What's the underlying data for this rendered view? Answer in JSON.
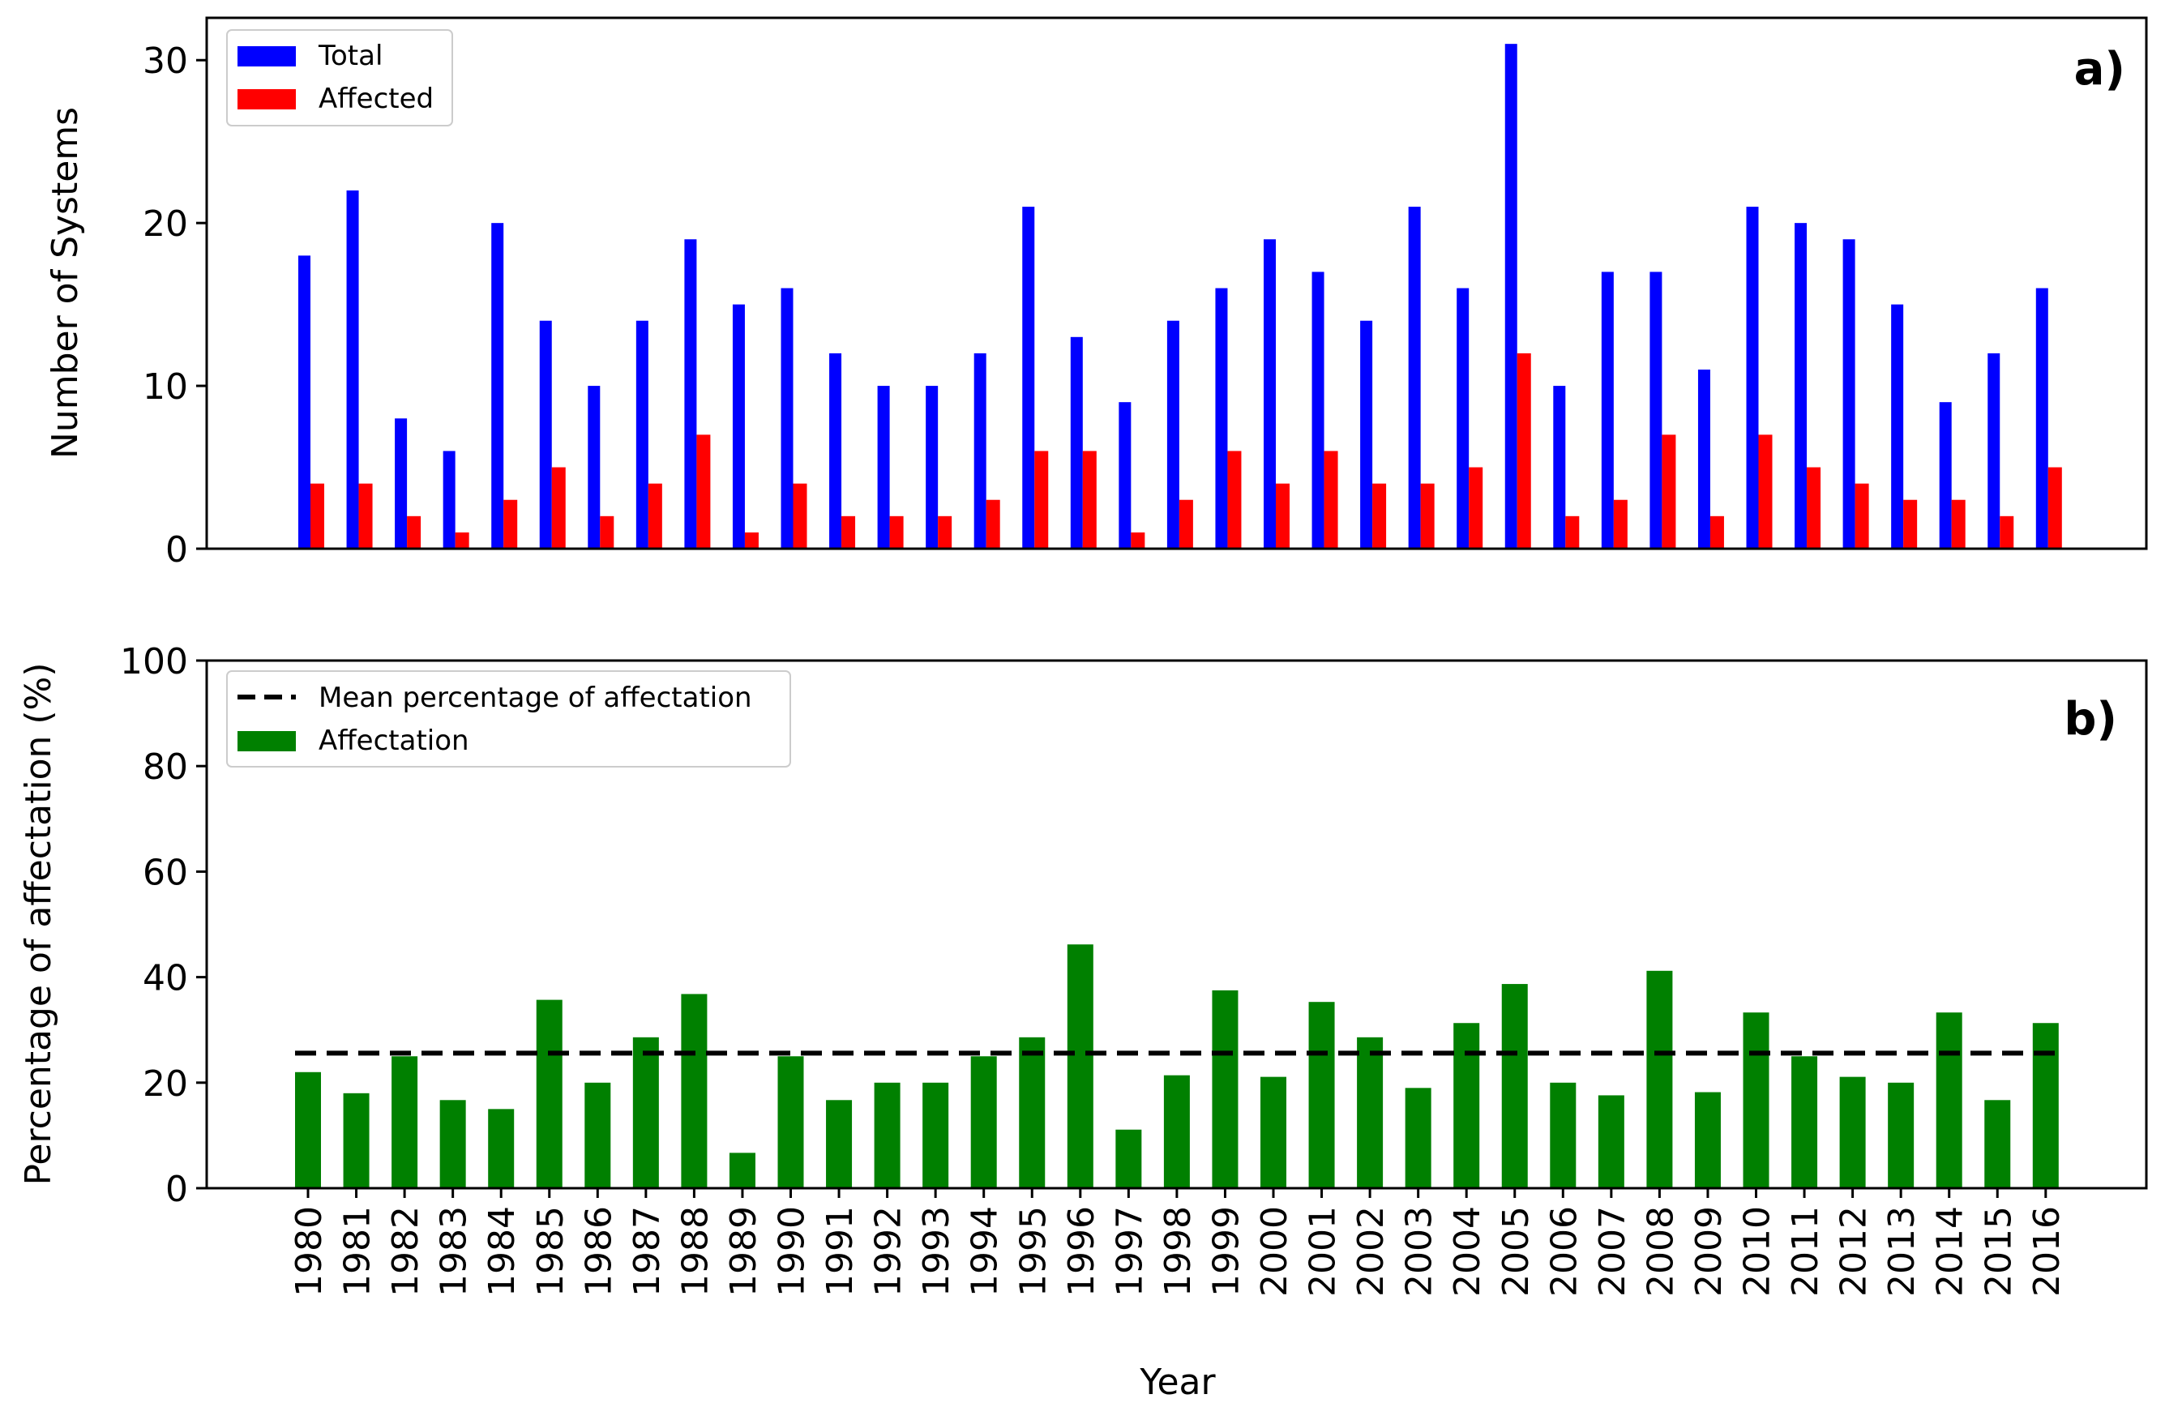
{
  "chart_data": [
    {
      "type": "bar",
      "panel_label": "a)",
      "ylabel": "Number of Systems",
      "xlabel": "",
      "ylim": [
        0,
        32.6
      ],
      "yticks": [
        0,
        10,
        20,
        30
      ],
      "legend_position": "top-left",
      "categories": [
        "1980",
        "1981",
        "1982",
        "1983",
        "1984",
        "1985",
        "1986",
        "1987",
        "1988",
        "1989",
        "1990",
        "1991",
        "1992",
        "1993",
        "1994",
        "1995",
        "1996",
        "1997",
        "1998",
        "1999",
        "2000",
        "2001",
        "2002",
        "2003",
        "2004",
        "2005",
        "2006",
        "2007",
        "2008",
        "2009",
        "2010",
        "2011",
        "2012",
        "2013",
        "2014",
        "2015",
        "2016"
      ],
      "series": [
        {
          "name": "Total",
          "color": "#0000ff",
          "values": [
            18,
            22,
            8,
            6,
            20,
            14,
            10,
            14,
            19,
            15,
            16,
            12,
            10,
            10,
            12,
            21,
            13,
            9,
            14,
            16,
            19,
            17,
            14,
            21,
            16,
            31,
            10,
            17,
            17,
            11,
            21,
            20,
            19,
            15,
            9,
            12,
            16
          ]
        },
        {
          "name": "Affected",
          "color": "#ff0000",
          "values": [
            4,
            4,
            2,
            1,
            3,
            5,
            2,
            4,
            7,
            1,
            4,
            2,
            2,
            2,
            3,
            6,
            6,
            1,
            3,
            6,
            4,
            6,
            4,
            4,
            5,
            12,
            2,
            3,
            7,
            2,
            7,
            5,
            4,
            3,
            3,
            2,
            5
          ]
        }
      ]
    },
    {
      "type": "bar",
      "panel_label": "b)",
      "ylabel": "Percentage of affectation (%)",
      "xlabel": "Year",
      "ylim": [
        0,
        100
      ],
      "yticks": [
        0,
        20,
        40,
        60,
        80,
        100
      ],
      "legend_position": "top-left",
      "categories": [
        "1980",
        "1981",
        "1982",
        "1983",
        "1984",
        "1985",
        "1986",
        "1987",
        "1988",
        "1989",
        "1990",
        "1991",
        "1992",
        "1993",
        "1994",
        "1995",
        "1996",
        "1997",
        "1998",
        "1999",
        "2000",
        "2001",
        "2002",
        "2003",
        "2004",
        "2005",
        "2006",
        "2007",
        "2008",
        "2009",
        "2010",
        "2011",
        "2012",
        "2013",
        "2014",
        "2015",
        "2016"
      ],
      "series": [
        {
          "name": "Affectation",
          "color": "#008000",
          "values": [
            22,
            18,
            25,
            16.7,
            15,
            35.7,
            20,
            28.6,
            36.8,
            6.7,
            25,
            16.7,
            20,
            20,
            25,
            28.6,
            46.2,
            11.1,
            21.4,
            37.5,
            21.1,
            35.3,
            28.6,
            19,
            31.3,
            38.7,
            20,
            17.6,
            41.2,
            18.2,
            33.3,
            25,
            21.1,
            20,
            33.3,
            16.7,
            31.3
          ]
        }
      ],
      "reference_line": {
        "name": "Mean percentage of affectation",
        "value": 25.6,
        "color": "#000000",
        "style": "dashed"
      }
    }
  ]
}
